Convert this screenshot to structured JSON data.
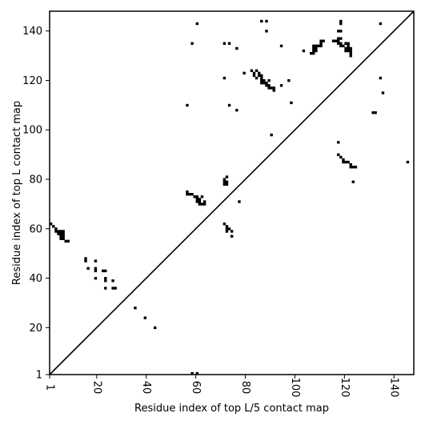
{
  "chart_data": {
    "type": "scatter",
    "xlabel": "Residue index of top L/5 contact map",
    "ylabel": "Residue index of top L contact map",
    "xlim": [
      1,
      148
    ],
    "ylim": [
      1,
      148
    ],
    "xticks": [
      1,
      20,
      40,
      60,
      80,
      100,
      120,
      140
    ],
    "yticks": [
      1,
      20,
      40,
      60,
      80,
      100,
      120,
      140
    ],
    "diagonal": true,
    "marker_color": "#000000",
    "upper_triangle_points": [
      [
        56.5,
        110
      ],
      [
        58.5,
        135
      ],
      [
        60.5,
        143
      ],
      [
        71.5,
        121
      ],
      [
        71.5,
        135
      ],
      [
        73.5,
        135
      ],
      [
        73.5,
        110
      ],
      [
        76.5,
        133
      ],
      [
        76.5,
        108
      ],
      [
        79.5,
        123
      ],
      [
        82.5,
        124
      ],
      [
        83.5,
        123
      ],
      [
        83.5,
        122
      ],
      [
        84.5,
        121
      ],
      [
        84.5,
        124
      ],
      [
        85.5,
        123
      ],
      [
        85.5,
        122
      ],
      [
        86.5,
        122
      ],
      [
        86.5,
        121
      ],
      [
        86.5,
        120
      ],
      [
        86.5,
        119
      ],
      [
        87.5,
        120
      ],
      [
        87.5,
        119
      ],
      [
        88.5,
        119
      ],
      [
        88.5,
        118
      ],
      [
        88.5,
        140
      ],
      [
        88.5,
        144
      ],
      [
        86.5,
        144
      ],
      [
        89.5,
        120
      ],
      [
        89.5,
        118
      ],
      [
        89.5,
        117
      ],
      [
        90.5,
        117
      ],
      [
        91.5,
        117
      ],
      [
        91.5,
        116
      ],
      [
        94.5,
        134
      ],
      [
        94.5,
        118
      ],
      [
        97.5,
        120
      ],
      [
        98.5,
        111
      ],
      [
        103.5,
        132
      ],
      [
        106.5,
        131
      ],
      [
        107.5,
        131
      ],
      [
        107.5,
        132
      ],
      [
        107.5,
        133
      ],
      [
        107.5,
        134
      ],
      [
        108.5,
        132
      ],
      [
        108.5,
        133
      ],
      [
        108.5,
        134
      ],
      [
        109.5,
        134
      ],
      [
        110.5,
        134
      ],
      [
        110.5,
        135
      ],
      [
        110.5,
        136
      ],
      [
        111.5,
        136
      ],
      [
        115.5,
        136
      ],
      [
        116.5,
        136
      ],
      [
        117.5,
        136
      ],
      [
        117.5,
        137
      ],
      [
        117.5,
        135
      ],
      [
        117.5,
        140
      ],
      [
        118.5,
        140
      ],
      [
        118.5,
        137
      ],
      [
        118.5,
        135
      ],
      [
        118.5,
        134
      ],
      [
        118.5,
        143
      ],
      [
        118.5,
        144
      ],
      [
        119.5,
        134
      ],
      [
        120.5,
        133
      ],
      [
        120.5,
        132
      ],
      [
        120.5,
        135
      ],
      [
        121.5,
        132
      ],
      [
        121.5,
        133
      ],
      [
        121.5,
        134
      ],
      [
        121.5,
        135
      ],
      [
        122.5,
        132
      ],
      [
        122.5,
        133
      ],
      [
        122.5,
        131
      ],
      [
        122.5,
        130
      ],
      [
        134.5,
        143
      ],
      [
        134.5,
        121
      ],
      [
        135.5,
        115
      ]
    ],
    "lower_triangle_points": [
      [
        1.5,
        62
      ],
      [
        2.5,
        61
      ],
      [
        3.5,
        60
      ],
      [
        3.5,
        59
      ],
      [
        4.5,
        59
      ],
      [
        4.5,
        58
      ],
      [
        5.5,
        59
      ],
      [
        5.5,
        58
      ],
      [
        5.5,
        57
      ],
      [
        5.5,
        56
      ],
      [
        6.5,
        56
      ],
      [
        6.5,
        57
      ],
      [
        6.5,
        58
      ],
      [
        6.5,
        59
      ],
      [
        7.5,
        55
      ],
      [
        8.5,
        55
      ],
      [
        15.5,
        48
      ],
      [
        15.5,
        47
      ],
      [
        16.5,
        44
      ],
      [
        19.5,
        47
      ],
      [
        19.5,
        44
      ],
      [
        19.5,
        43
      ],
      [
        19.5,
        40
      ],
      [
        22.5,
        43
      ],
      [
        23.5,
        43
      ],
      [
        23.5,
        40
      ],
      [
        23.5,
        39
      ],
      [
        23.5,
        36
      ],
      [
        26.5,
        36
      ],
      [
        26.5,
        39
      ],
      [
        27.5,
        36
      ],
      [
        35.5,
        28
      ],
      [
        39.5,
        24
      ],
      [
        43.5,
        20
      ],
      [
        56.5,
        75
      ],
      [
        56.5,
        74
      ],
      [
        57.5,
        74
      ],
      [
        58.5,
        74
      ],
      [
        59.5,
        73
      ],
      [
        60.5,
        73
      ],
      [
        60.5,
        72
      ],
      [
        60.5,
        71
      ],
      [
        61.5,
        72
      ],
      [
        61.5,
        71
      ],
      [
        61.5,
        70
      ],
      [
        62.5,
        73
      ],
      [
        62.5,
        70
      ],
      [
        63.5,
        71
      ],
      [
        63.5,
        70
      ],
      [
        71.5,
        80
      ],
      [
        71.5,
        79
      ],
      [
        71.5,
        78
      ],
      [
        72.5,
        81
      ],
      [
        72.5,
        79
      ],
      [
        72.5,
        78
      ],
      [
        71.5,
        62
      ],
      [
        72.5,
        61
      ],
      [
        72.5,
        60
      ],
      [
        72.5,
        59
      ],
      [
        73.5,
        60
      ],
      [
        74.5,
        59
      ],
      [
        74.5,
        57
      ],
      [
        77.5,
        71
      ],
      [
        90.5,
        98
      ],
      [
        117.5,
        95
      ],
      [
        117.5,
        90
      ],
      [
        118.5,
        89
      ],
      [
        119.5,
        88
      ],
      [
        119.5,
        87
      ],
      [
        120.5,
        87
      ],
      [
        121.5,
        87
      ],
      [
        122.5,
        86
      ],
      [
        122.5,
        85
      ],
      [
        123.5,
        85
      ],
      [
        123.5,
        79
      ],
      [
        124.5,
        85
      ],
      [
        131.5,
        107
      ],
      [
        132.5,
        107
      ],
      [
        145.5,
        87
      ],
      [
        58.5,
        1.5
      ],
      [
        60.5,
        1.5
      ]
    ]
  }
}
